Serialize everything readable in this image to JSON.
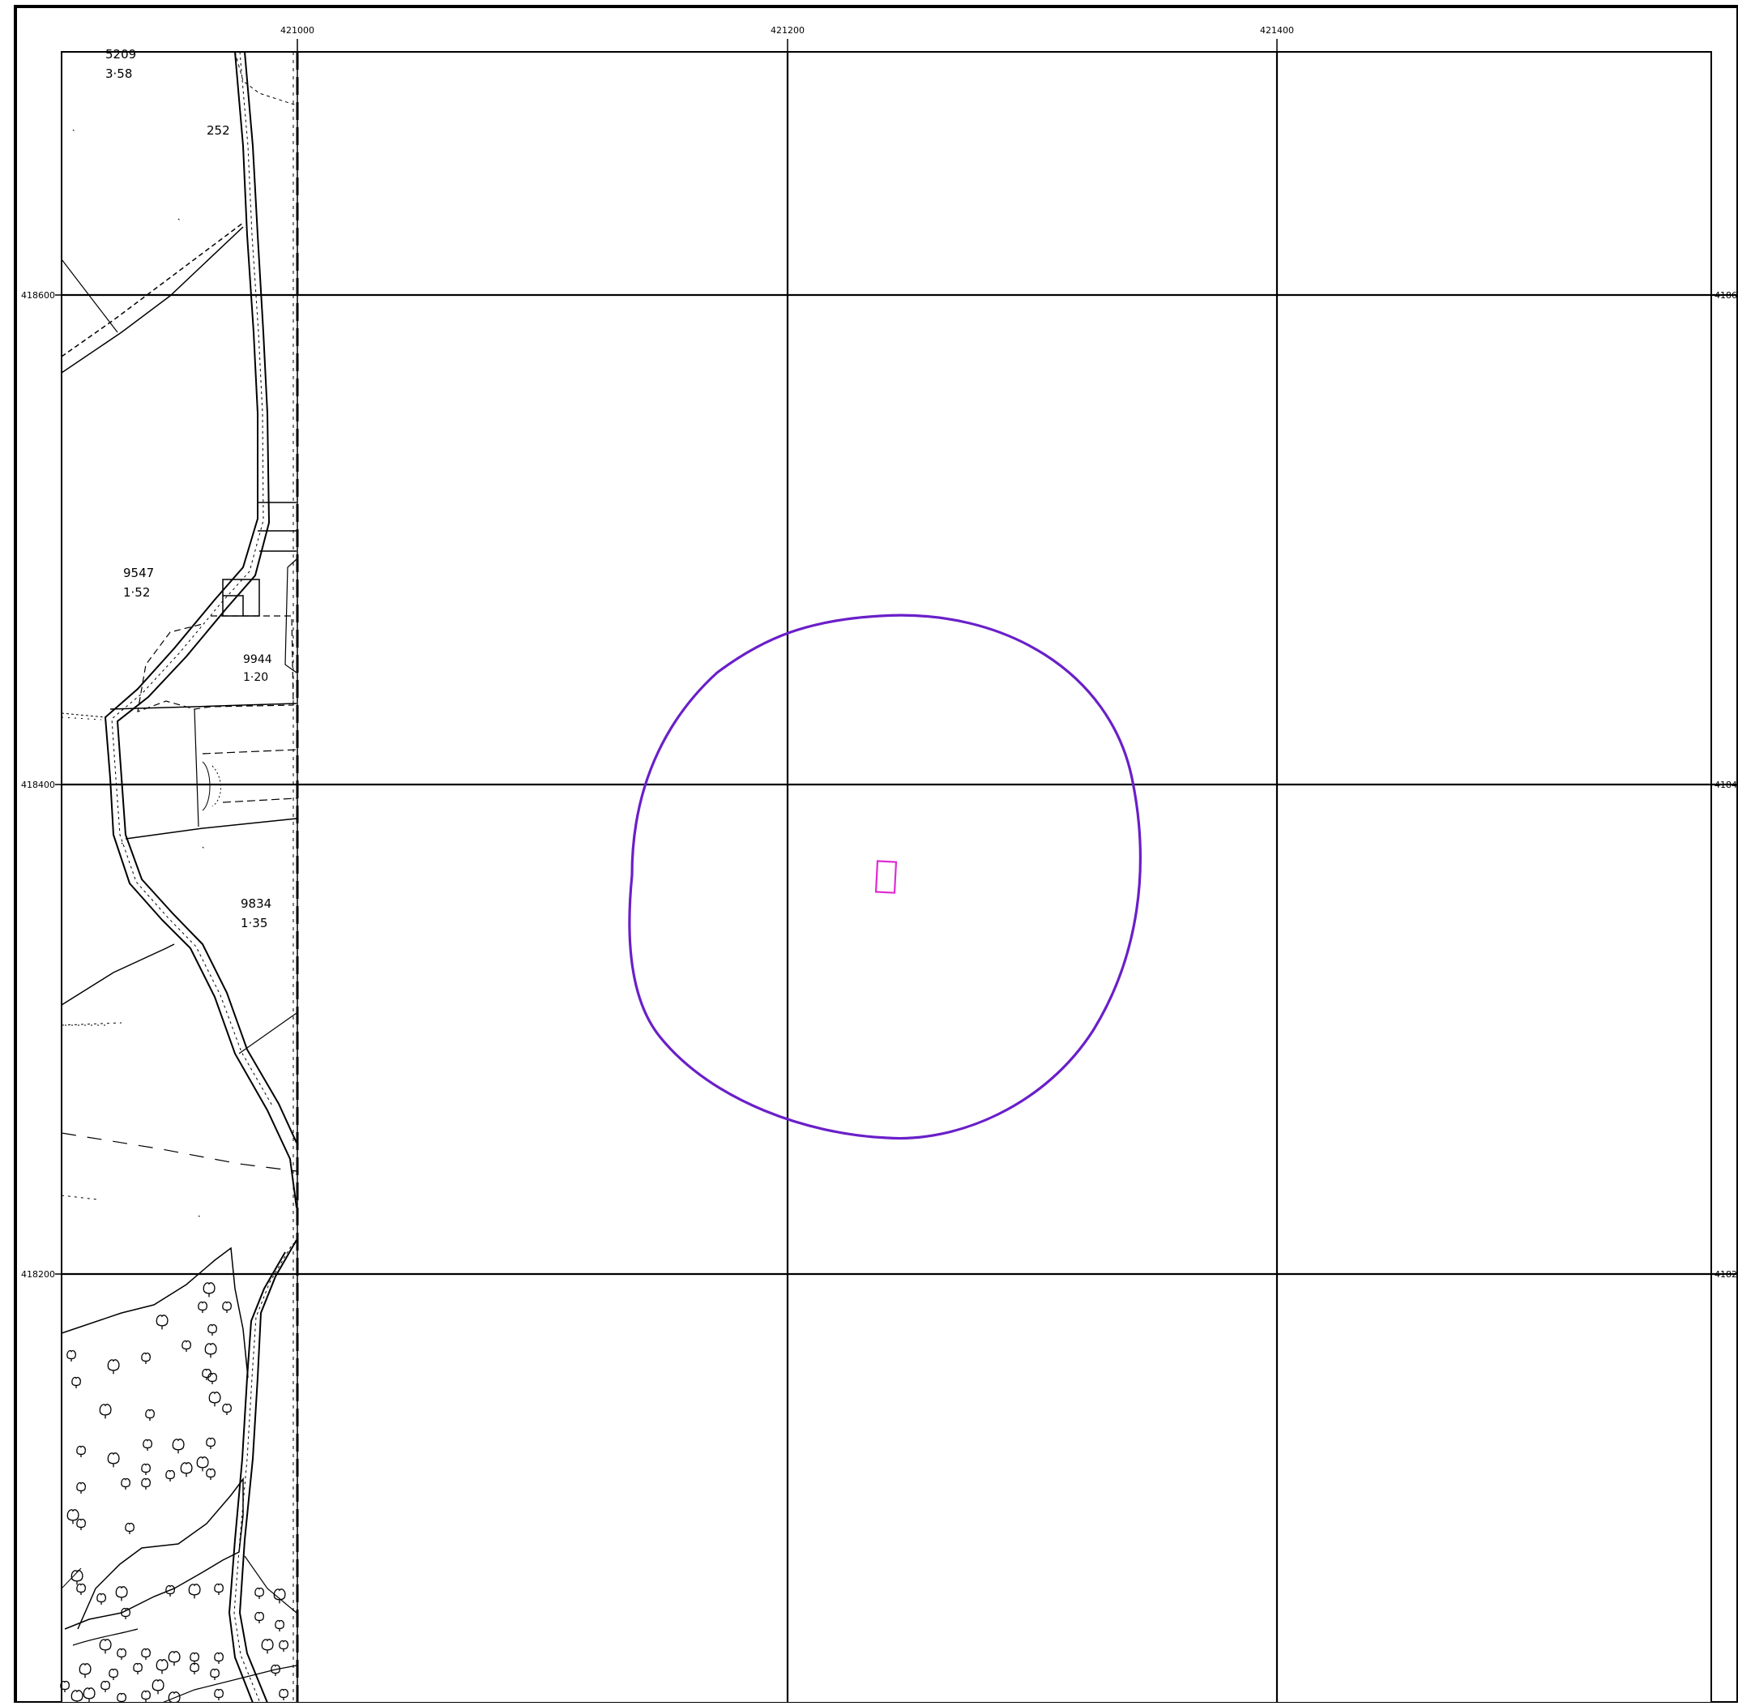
{
  "map": {
    "grid": {
      "x_labels": [
        "421000",
        "421200",
        "421400"
      ],
      "y_labels": [
        "418600",
        "418400",
        "418200"
      ],
      "right_y_labels": [
        "4186",
        "4184",
        "4182"
      ]
    },
    "parcel_labels": [
      {
        "number": "5209",
        "area": "3·58"
      },
      {
        "number": "9547",
        "area": "1·52"
      },
      {
        "number": "9944",
        "area": "1·20"
      },
      {
        "number": "9834",
        "area": "1·35"
      }
    ],
    "field_number_fragment": "252",
    "overlays": {
      "buffer_circle_color": "#6a1fc9",
      "site_rectangle_color": "#e02bd3"
    },
    "icons": {
      "tree_symbol": "tree-icon"
    }
  }
}
